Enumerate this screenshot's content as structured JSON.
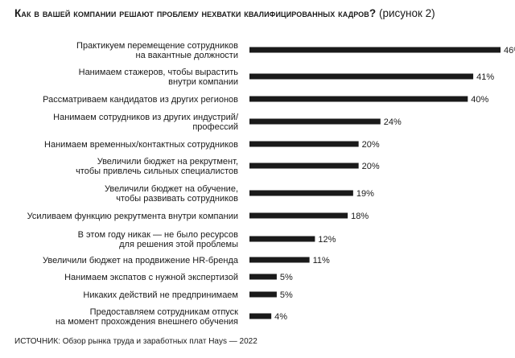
{
  "title": "Как в вашей компании решают проблему нехватки квалифицированных кадров?",
  "title_suffix": "(рисунок 2)",
  "source": "ИСТОЧНИК: Обзор рынка труда и заработных плат Hays — 2022",
  "bar_color": "#1a1a1a",
  "chart_data": {
    "type": "bar",
    "orientation": "horizontal",
    "value_suffix": "%",
    "xlim": [
      0,
      46
    ],
    "grid": false,
    "categories": [
      [
        "Практикуем перемещение сотрудников",
        "на вакантные должности"
      ],
      [
        "Нанимаем стажеров, чтобы вырастить",
        "внутри компании"
      ],
      [
        "Рассматриваем кандидатов из других регионов"
      ],
      [
        "Нанимаем сотрудников из других индустрий/",
        "профессий"
      ],
      [
        "Нанимаем временных/контактных сотрудников"
      ],
      [
        "Увеличили бюджет на рекрутмент,",
        "чтобы привлечь сильных специалистов"
      ],
      [
        "Увеличили бюджет на обучение,",
        "чтобы развивать сотрудников"
      ],
      [
        "Усиливаем функцию рекрутмента внутри компании"
      ],
      [
        "В этом году никак — не было ресурсов",
        "для решения этой проблемы"
      ],
      [
        "Увеличили бюджет на продвижение HR-бренда"
      ],
      [
        "Нанимаем экспатов с нужной экспертизой"
      ],
      [
        "Никаких действий не предпринимаем"
      ],
      [
        "Предоставляем сотрудникам отпуск",
        "на момент прохождения внешнего обучения"
      ]
    ],
    "values": [
      46,
      41,
      40,
      24,
      20,
      20,
      19,
      18,
      12,
      11,
      5,
      5,
      4
    ]
  }
}
